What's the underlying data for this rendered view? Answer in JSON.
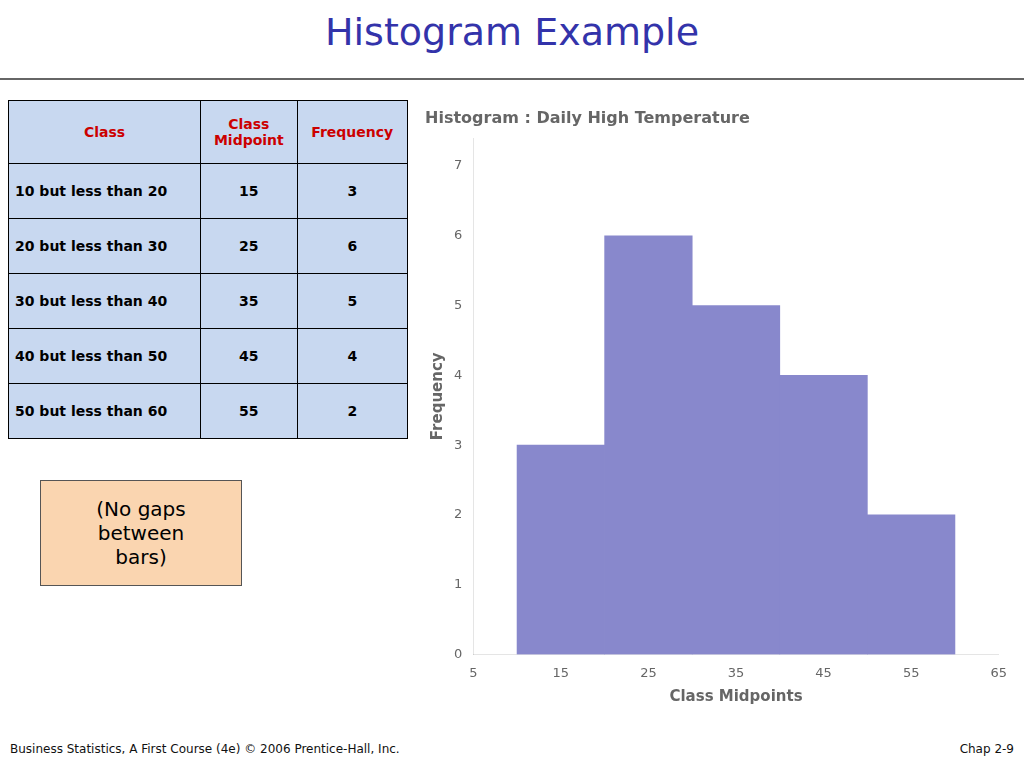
{
  "chart_data": {
    "type": "bar",
    "title": "Histogram Example",
    "subtitle": "Histogram : Daily High Temperature",
    "xlabel": "Class Midpoints",
    "ylabel": "Frequency",
    "x": [
      15,
      25,
      35,
      45,
      55
    ],
    "values": [
      3,
      6,
      5,
      4,
      2
    ],
    "color": "#8888cc",
    "xlim": [
      5,
      65
    ],
    "xticks": [
      5,
      15,
      25,
      35,
      45,
      55,
      65
    ],
    "ylim": [
      0,
      7.4
    ],
    "yticks": [
      0,
      1,
      2,
      3,
      4,
      5,
      6,
      7
    ],
    "grid": false,
    "table": {
      "headers": [
        "Class",
        "Class\nMidpoint",
        "Frequency"
      ],
      "rows": [
        [
          "10 but less than 20",
          "15",
          "3"
        ],
        [
          "20 but less than 30",
          "25",
          "6"
        ],
        [
          "30 but less than 40",
          "35",
          "5"
        ],
        [
          "40 but less than 50",
          "45",
          "4"
        ],
        [
          "50 but less than 60",
          "55",
          "2"
        ]
      ]
    },
    "annotations": [
      "(No gaps\nbetween\nbars)",
      "Business Statistics, A First Course (4e) © 2006 Prentice-Hall, Inc.",
      "Chap 2-9"
    ]
  }
}
